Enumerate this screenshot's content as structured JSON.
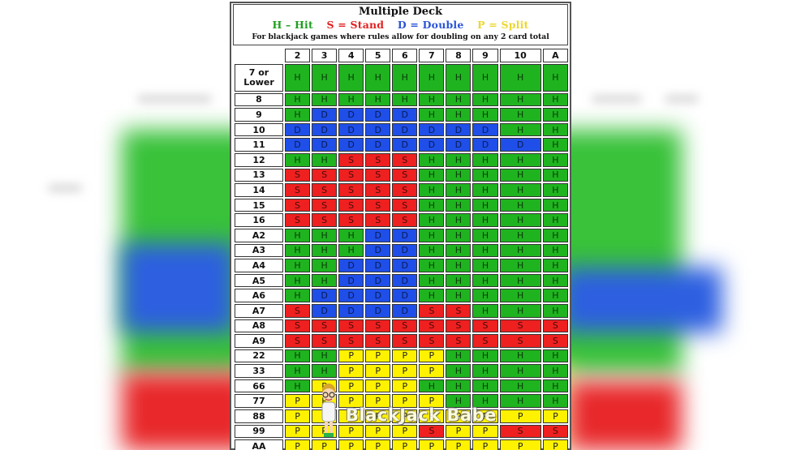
{
  "chart": {
    "title": "Multiple Deck",
    "legend": {
      "hit": "H – Hit",
      "stand": "S = Stand",
      "double": "D = Double",
      "split": "P = Split"
    },
    "note": "For blackjack games where rules allow for doubling on any 2 card total",
    "dealer_cards": [
      "2",
      "3",
      "4",
      "5",
      "6",
      "7",
      "8",
      "9",
      "10",
      "A"
    ],
    "rows": [
      {
        "hand": "7 or Lower",
        "actions": [
          "H",
          "H",
          "H",
          "H",
          "H",
          "H",
          "H",
          "H",
          "H",
          "H"
        ]
      },
      {
        "hand": "8",
        "actions": [
          "H",
          "H",
          "H",
          "H",
          "H",
          "H",
          "H",
          "H",
          "H",
          "H"
        ]
      },
      {
        "hand": "9",
        "actions": [
          "H",
          "D",
          "D",
          "D",
          "D",
          "H",
          "H",
          "H",
          "H",
          "H"
        ]
      },
      {
        "hand": "10",
        "actions": [
          "D",
          "D",
          "D",
          "D",
          "D",
          "D",
          "D",
          "D",
          "H",
          "H"
        ]
      },
      {
        "hand": "11",
        "actions": [
          "D",
          "D",
          "D",
          "D",
          "D",
          "D",
          "D",
          "D",
          "D",
          "H"
        ]
      },
      {
        "hand": "12",
        "actions": [
          "H",
          "H",
          "S",
          "S",
          "S",
          "H",
          "H",
          "H",
          "H",
          "H"
        ]
      },
      {
        "hand": "13",
        "actions": [
          "S",
          "S",
          "S",
          "S",
          "S",
          "H",
          "H",
          "H",
          "H",
          "H"
        ]
      },
      {
        "hand": "14",
        "actions": [
          "S",
          "S",
          "S",
          "S",
          "S",
          "H",
          "H",
          "H",
          "H",
          "H"
        ]
      },
      {
        "hand": "15",
        "actions": [
          "S",
          "S",
          "S",
          "S",
          "S",
          "H",
          "H",
          "H",
          "H",
          "H"
        ]
      },
      {
        "hand": "16",
        "actions": [
          "S",
          "S",
          "S",
          "S",
          "S",
          "H",
          "H",
          "H",
          "H",
          "H"
        ]
      },
      {
        "hand": "A2",
        "actions": [
          "H",
          "H",
          "H",
          "D",
          "D",
          "H",
          "H",
          "H",
          "H",
          "H"
        ]
      },
      {
        "hand": "A3",
        "actions": [
          "H",
          "H",
          "H",
          "D",
          "D",
          "H",
          "H",
          "H",
          "H",
          "H"
        ]
      },
      {
        "hand": "A4",
        "actions": [
          "H",
          "H",
          "D",
          "D",
          "D",
          "H",
          "H",
          "H",
          "H",
          "H"
        ]
      },
      {
        "hand": "A5",
        "actions": [
          "H",
          "H",
          "D",
          "D",
          "D",
          "H",
          "H",
          "H",
          "H",
          "H"
        ]
      },
      {
        "hand": "A6",
        "actions": [
          "H",
          "D",
          "D",
          "D",
          "D",
          "H",
          "H",
          "H",
          "H",
          "H"
        ]
      },
      {
        "hand": "A7",
        "actions": [
          "S",
          "D",
          "D",
          "D",
          "D",
          "S",
          "S",
          "H",
          "H",
          "H"
        ]
      },
      {
        "hand": "A8",
        "actions": [
          "S",
          "S",
          "S",
          "S",
          "S",
          "S",
          "S",
          "S",
          "S",
          "S"
        ]
      },
      {
        "hand": "A9",
        "actions": [
          "S",
          "S",
          "S",
          "S",
          "S",
          "S",
          "S",
          "S",
          "S",
          "S"
        ]
      },
      {
        "hand": "22",
        "actions": [
          "H",
          "H",
          "P",
          "P",
          "P",
          "P",
          "H",
          "H",
          "H",
          "H"
        ]
      },
      {
        "hand": "33",
        "actions": [
          "H",
          "H",
          "P",
          "P",
          "P",
          "P",
          "H",
          "H",
          "H",
          "H"
        ]
      },
      {
        "hand": "66",
        "actions": [
          "H",
          "P",
          "P",
          "P",
          "P",
          "H",
          "H",
          "H",
          "H",
          "H"
        ]
      },
      {
        "hand": "77",
        "actions": [
          "P",
          "P",
          "P",
          "P",
          "P",
          "P",
          "H",
          "H",
          "H",
          "H"
        ]
      },
      {
        "hand": "88",
        "actions": [
          "P",
          "P",
          "P",
          "P",
          "P",
          "P",
          "P",
          "P",
          "P",
          "P"
        ]
      },
      {
        "hand": "99",
        "actions": [
          "P",
          "P",
          "P",
          "P",
          "P",
          "S",
          "P",
          "P",
          "S",
          "S"
        ]
      },
      {
        "hand": "AA",
        "actions": [
          "P",
          "P",
          "P",
          "P",
          "P",
          "P",
          "P",
          "P",
          "P",
          "P"
        ]
      }
    ]
  },
  "watermark": {
    "text": "BlackJack Babe",
    "icon": "cartoon-woman-icon"
  },
  "colors": {
    "hit": "#1fb41f",
    "stand": "#ee2020",
    "double": "#1f4fe8",
    "split": "#fff200"
  }
}
